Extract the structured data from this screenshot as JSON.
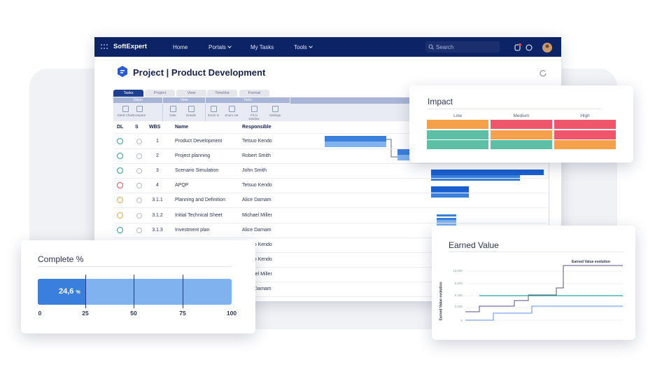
{
  "nav": {
    "logo": "SoftExpert",
    "items": [
      "Home",
      "Portals",
      "My Tasks",
      "Tools"
    ],
    "search": "Search"
  },
  "header": {
    "title": "Project | Product Development"
  },
  "tabs": [
    "Tasks",
    "Project",
    "View",
    "Timeline",
    "Format"
  ],
  "toolbar": {
    "groups": [
      "Vision",
      "View",
      "Tools"
    ],
    "buttons": [
      "Gantt Chart",
      "Compare",
      "Date",
      "Details",
      "Zoom in",
      "Zoom out",
      "Fit to window",
      "Settings"
    ]
  },
  "table": {
    "columns": [
      "DL",
      "S",
      "WBS",
      "Name",
      "Responsible"
    ],
    "rows": [
      {
        "wbs": "1",
        "name": "Product Development",
        "responsible": "Tetsuo Kendo"
      },
      {
        "wbs": "2",
        "name": "Project planning",
        "responsible": "Robert Smith"
      },
      {
        "wbs": "3",
        "name": "Scenario Simulation",
        "responsible": "John Smith"
      },
      {
        "wbs": "4",
        "name": "APQP",
        "responsible": "Tetsuo Kendo"
      },
      {
        "wbs": "3.1.1",
        "name": "Planning and Definition",
        "responsible": "Alice Damam"
      },
      {
        "wbs": "3.1.2",
        "name": "Initial Technical Sheet",
        "responsible": "Michael Miller"
      },
      {
        "wbs": "3.1.3",
        "name": "Investment plan",
        "responsible": "Alice Damam"
      },
      {
        "responsible": "Tetsuo Kendo"
      },
      {
        "responsible": "Tetsuo Kendo"
      },
      {
        "responsible": "Michael Miller"
      },
      {
        "responsible": "Alice Damam"
      }
    ]
  },
  "impact": {
    "title": "Impact",
    "columns": [
      "Low",
      "Medium",
      "High"
    ]
  },
  "complete": {
    "title": "Complete %",
    "value": "24,6",
    "unit": "%",
    "ticks": [
      "0",
      "25",
      "50",
      "75",
      "100"
    ]
  },
  "earned_value": {
    "title": "Earned Value",
    "legend": "Earned Value evolution",
    "y_axis_label": "Earned Value evolution",
    "yticks": [
      "12,000",
      "9,600",
      "6,400",
      "3,200",
      "0"
    ]
  }
}
